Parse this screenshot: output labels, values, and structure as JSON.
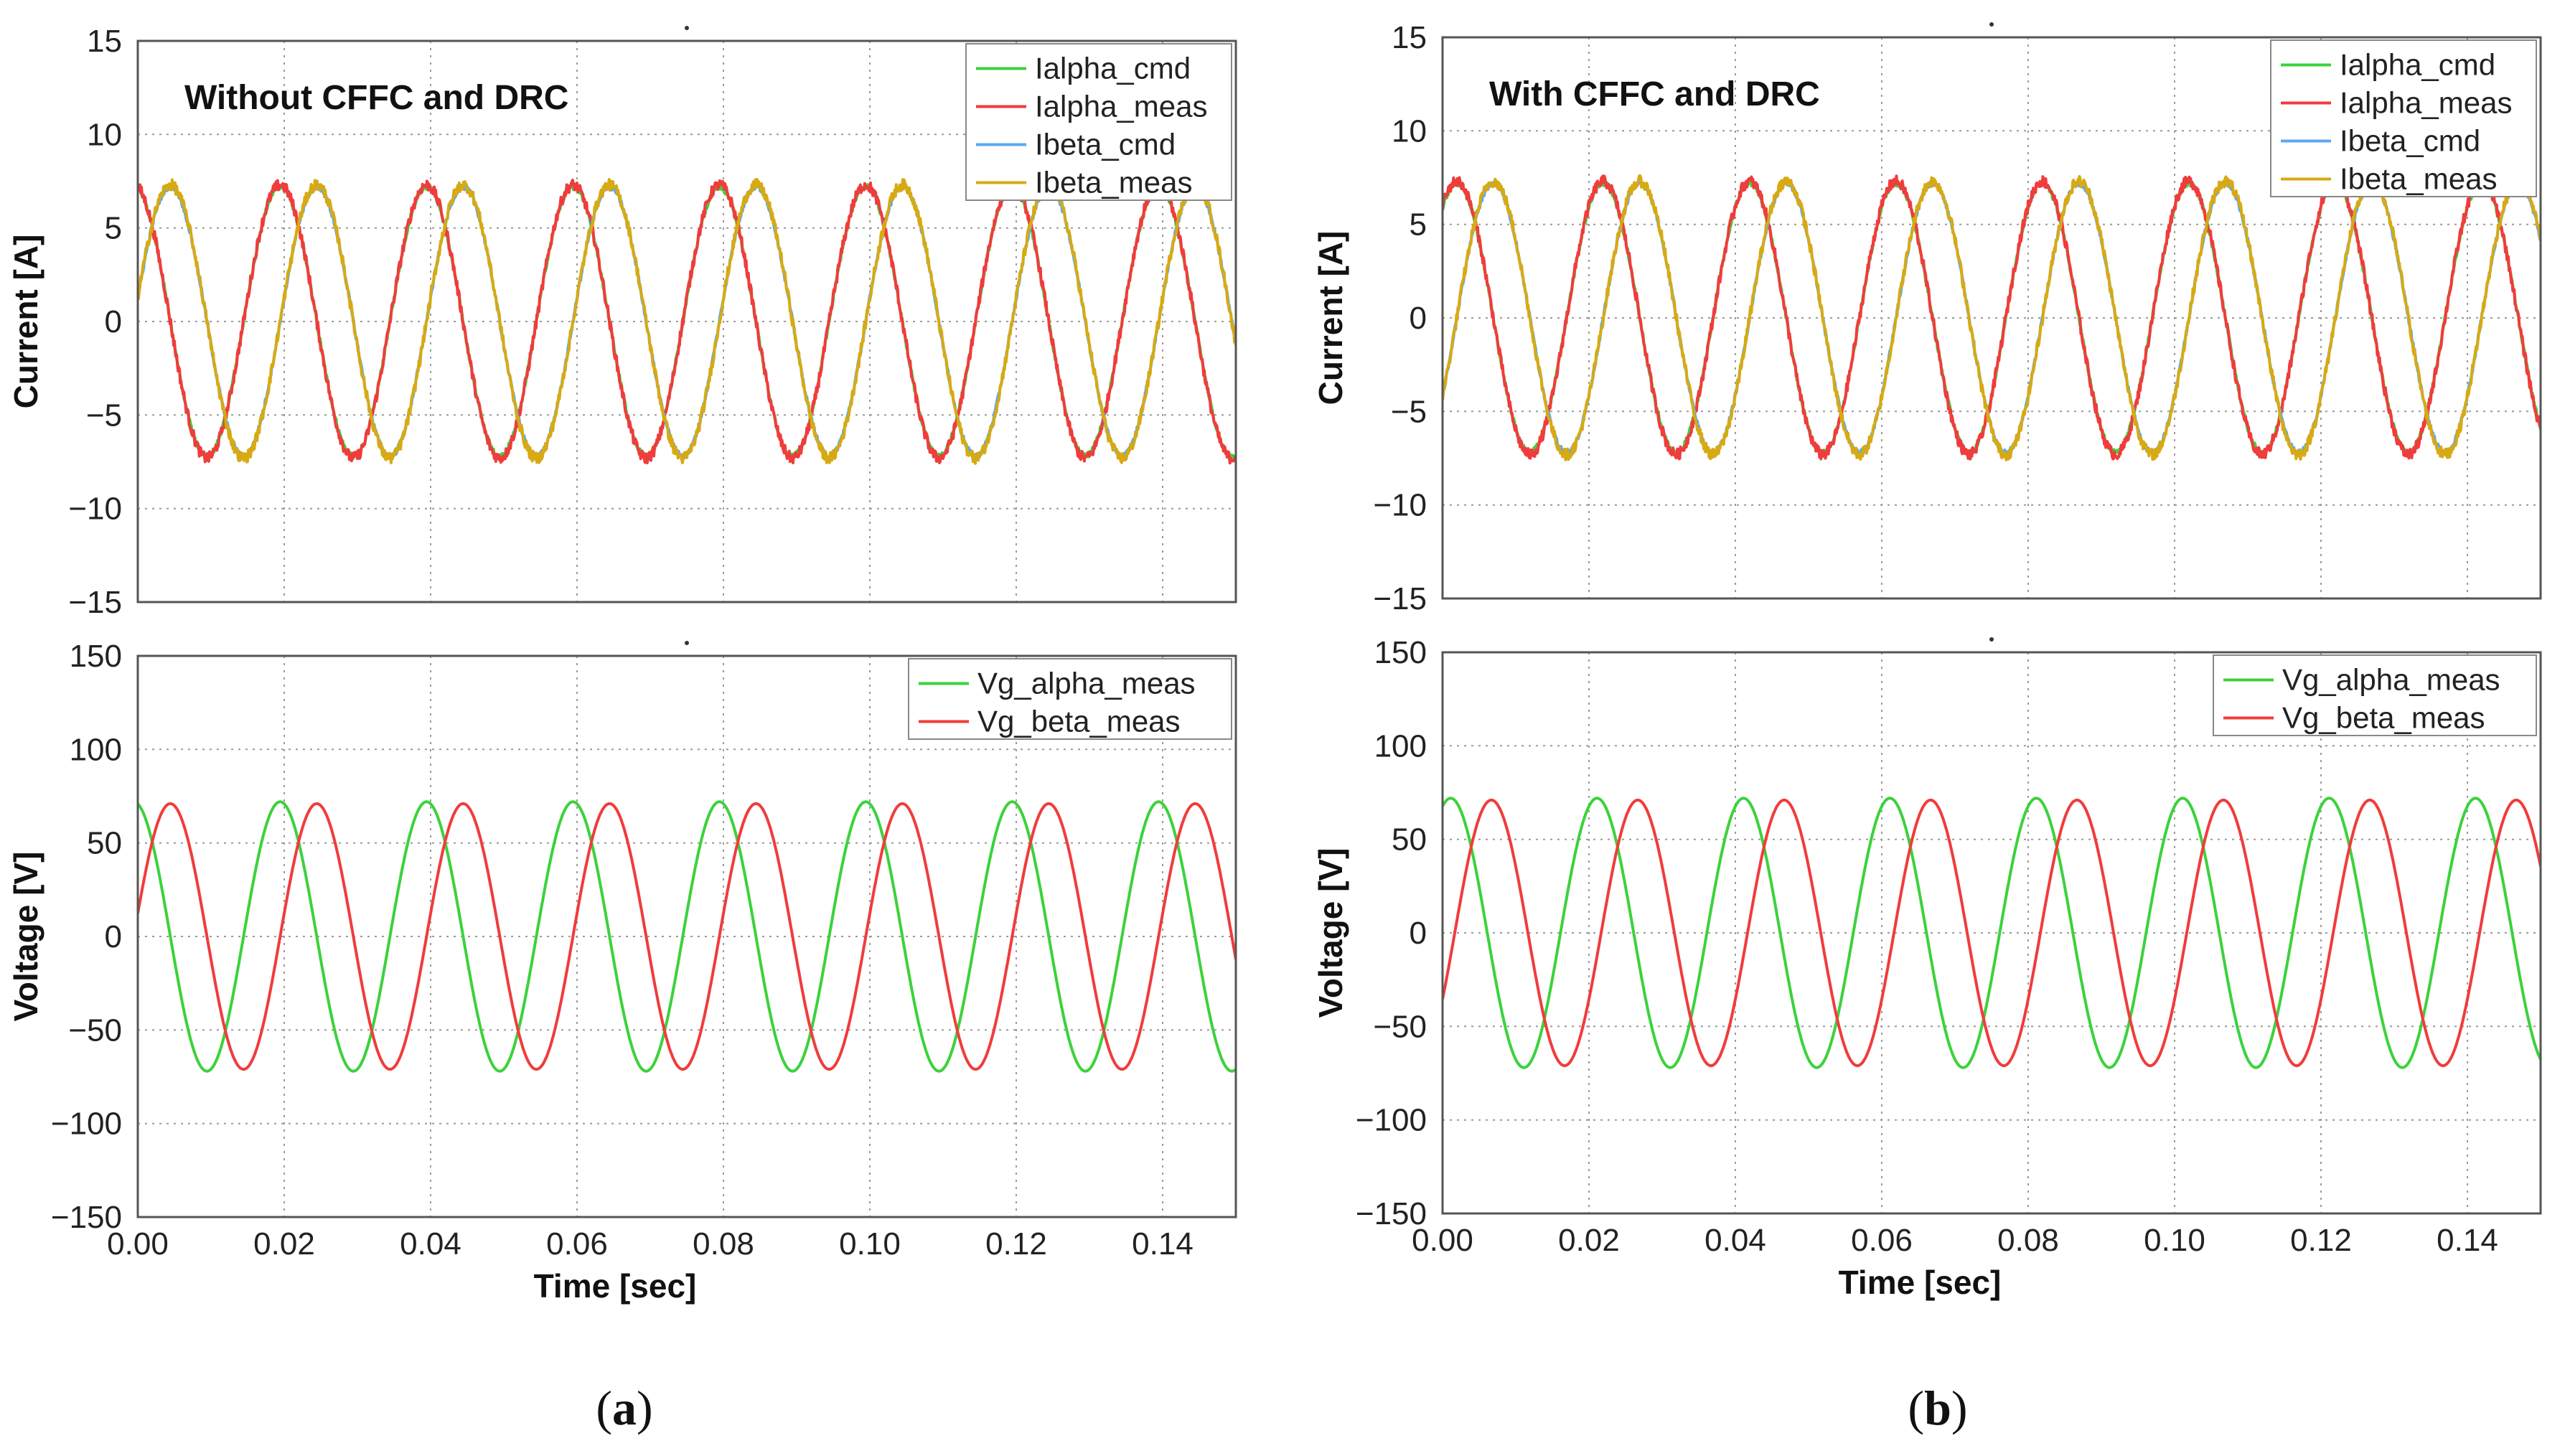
{
  "figure": {
    "panels": [
      {
        "caption_open": "(",
        "caption_letter": "a",
        "caption_close": ")"
      },
      {
        "caption_open": "(",
        "caption_letter": "b",
        "caption_close": ")"
      }
    ]
  },
  "colors": {
    "green": "#3cd23c",
    "red": "#f03c3c",
    "blue": "#5aaaf0",
    "gold": "#d7aa14",
    "grid": "#9a9a9a",
    "frame": "#555555"
  },
  "chart_data": [
    {
      "type": "line",
      "panel": "a",
      "title": "",
      "annotation": "Without CFFC and DRC",
      "xlabel": "",
      "ylabel": "Current [A]",
      "xlim": [
        0,
        0.15
      ],
      "ylim": [
        -15,
        15
      ],
      "xticks": [
        0,
        0.02,
        0.04,
        0.06,
        0.08,
        0.1,
        0.12,
        0.14
      ],
      "xtick_labels": [
        "",
        "",
        "",
        "",
        "",
        "",
        "",
        ""
      ],
      "yticks": [
        -15,
        -10,
        -5,
        0,
        5,
        10,
        15
      ],
      "ytick_labels": [
        "−15",
        "−10",
        "−5",
        "0",
        "5",
        "10",
        "15"
      ],
      "frequency_hz": 50,
      "legend_position": "top-right",
      "series": [
        {
          "name": "Ialpha_cmd",
          "color": "#3cd23c",
          "amplitude": 7.2,
          "phase_deg": 100,
          "noise": 0.15
        },
        {
          "name": "Ialpha_meas",
          "color": "#f03c3c",
          "amplitude": 7.3,
          "phase_deg": 100,
          "noise": 0.3
        },
        {
          "name": "Ibeta_cmd",
          "color": "#5aaaf0",
          "amplitude": 7.2,
          "phase_deg": 10,
          "noise": 0.15
        },
        {
          "name": "Ibeta_meas",
          "color": "#d7aa14",
          "amplitude": 7.3,
          "phase_deg": 10,
          "noise": 0.3
        }
      ]
    },
    {
      "type": "line",
      "panel": "a",
      "title": "",
      "xlabel": "Time [sec]",
      "ylabel": "Voltage [V]",
      "xlim": [
        0,
        0.15
      ],
      "ylim": [
        -150,
        150
      ],
      "xticks": [
        0,
        0.02,
        0.04,
        0.06,
        0.08,
        0.1,
        0.12,
        0.14
      ],
      "xtick_labels": [
        "0.00",
        "0.02",
        "0.04",
        "0.06",
        "0.08",
        "0.10",
        "0.12",
        "0.14"
      ],
      "yticks": [
        -150,
        -100,
        -50,
        0,
        50,
        100,
        150
      ],
      "ytick_labels": [
        "−150",
        "−100",
        "−50",
        "0",
        "50",
        "100",
        "150"
      ],
      "frequency_hz": 50,
      "legend_position": "top-right",
      "series": [
        {
          "name": "Vg_alpha_meas",
          "color": "#3cd23c",
          "amplitude": 72,
          "phase_deg": 100,
          "noise": 0
        },
        {
          "name": "Vg_beta_meas",
          "color": "#f03c3c",
          "amplitude": 71,
          "phase_deg": 10,
          "noise": 0
        }
      ]
    },
    {
      "type": "line",
      "panel": "b",
      "title": "",
      "annotation": "With CFFC and DRC",
      "xlabel": "",
      "ylabel": "Current [A]",
      "xlim": [
        0,
        0.15
      ],
      "ylim": [
        -15,
        15
      ],
      "xticks": [
        0,
        0.02,
        0.04,
        0.06,
        0.08,
        0.1,
        0.12,
        0.14
      ],
      "xtick_labels": [
        "",
        "",
        "",
        "",
        "",
        "",
        "",
        ""
      ],
      "yticks": [
        -15,
        -10,
        -5,
        0,
        5,
        10,
        15
      ],
      "ytick_labels": [
        "−15",
        "−10",
        "−5",
        "0",
        "5",
        "10",
        "15"
      ],
      "frequency_hz": 50,
      "legend_position": "top-right",
      "series": [
        {
          "name": "Ialpha_cmd",
          "color": "#3cd23c",
          "amplitude": 7.2,
          "phase_deg": 55,
          "noise": 0.15
        },
        {
          "name": "Ialpha_meas",
          "color": "#f03c3c",
          "amplitude": 7.3,
          "phase_deg": 55,
          "noise": 0.3
        },
        {
          "name": "Ibeta_cmd",
          "color": "#5aaaf0",
          "amplitude": 7.2,
          "phase_deg": -35,
          "noise": 0.15
        },
        {
          "name": "Ibeta_meas",
          "color": "#d7aa14",
          "amplitude": 7.3,
          "phase_deg": -35,
          "noise": 0.3
        }
      ]
    },
    {
      "type": "line",
      "panel": "b",
      "title": "",
      "xlabel": "Time [sec]",
      "ylabel": "Voltage [V]",
      "xlim": [
        0,
        0.15
      ],
      "ylim": [
        -150,
        150
      ],
      "xticks": [
        0,
        0.02,
        0.04,
        0.06,
        0.08,
        0.1,
        0.12,
        0.14
      ],
      "xtick_labels": [
        "0.00",
        "0.02",
        "0.04",
        "0.06",
        "0.08",
        "0.10",
        "0.12",
        "0.14"
      ],
      "yticks": [
        -150,
        -100,
        -50,
        0,
        50,
        100,
        150
      ],
      "ytick_labels": [
        "−150",
        "−100",
        "−50",
        "0",
        "50",
        "100",
        "150"
      ],
      "frequency_hz": 50,
      "legend_position": "top-right",
      "series": [
        {
          "name": "Vg_alpha_meas",
          "color": "#3cd23c",
          "amplitude": 72,
          "phase_deg": 70,
          "noise": 0
        },
        {
          "name": "Vg_beta_meas",
          "color": "#f03c3c",
          "amplitude": 71,
          "phase_deg": -30,
          "noise": 0
        }
      ]
    }
  ]
}
